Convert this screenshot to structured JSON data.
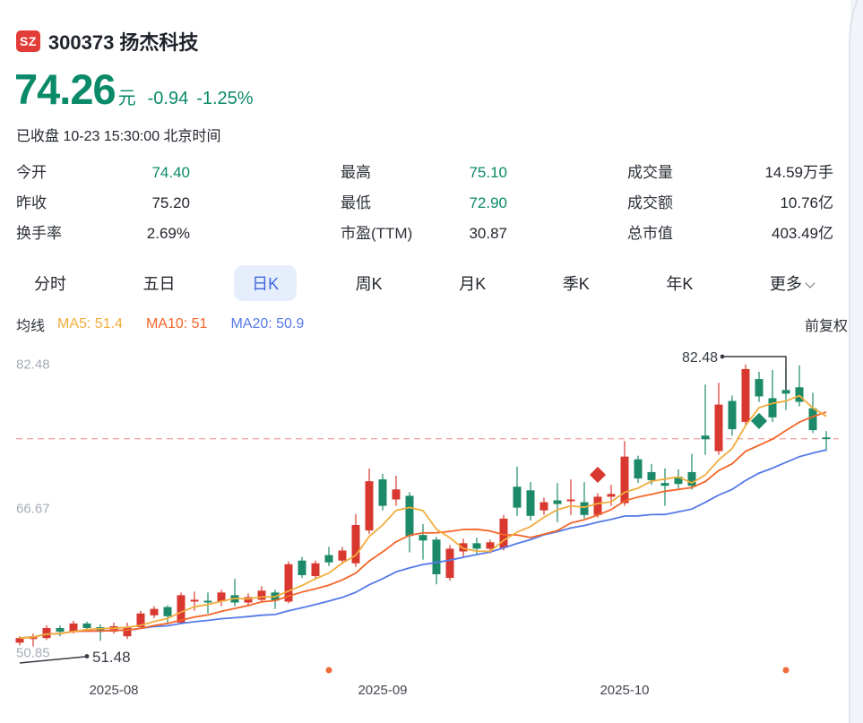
{
  "header": {
    "exchange_badge": "SZ",
    "title": "300373 扬杰科技",
    "price": "74.26",
    "currency": "元",
    "change": "-0.94",
    "change_pct": "-1.25%",
    "status_line": "已收盘 10-23 15:30:00 北京时间"
  },
  "stats": {
    "columns": [
      [
        {
          "label": "今开",
          "value": "74.40",
          "green": true
        },
        {
          "label": "昨收",
          "value": "75.20",
          "green": false
        },
        {
          "label": "换手率",
          "value": "2.69%",
          "green": false
        }
      ],
      [
        {
          "label": "最高",
          "value": "75.10",
          "green": true
        },
        {
          "label": "最低",
          "value": "72.90",
          "green": true
        },
        {
          "label": "市盈(TTM)",
          "value": "30.87",
          "green": false
        }
      ],
      [
        {
          "label": "成交量",
          "value": "14.59万手",
          "green": false
        },
        {
          "label": "成交额",
          "value": "10.76亿",
          "green": false
        },
        {
          "label": "总市值",
          "value": "403.49亿",
          "green": false
        }
      ]
    ]
  },
  "tabs": {
    "items": [
      {
        "key": "minute",
        "label": "分时",
        "active": false,
        "caret": false
      },
      {
        "key": "five-day",
        "label": "五日",
        "active": false,
        "caret": false
      },
      {
        "key": "daily-k",
        "label": "日K",
        "active": true,
        "caret": false
      },
      {
        "key": "weekly-k",
        "label": "周K",
        "active": false,
        "caret": false
      },
      {
        "key": "monthly-k",
        "label": "月K",
        "active": false,
        "caret": false
      },
      {
        "key": "quarterly-k",
        "label": "季K",
        "active": false,
        "caret": false
      },
      {
        "key": "yearly-k",
        "label": "年K",
        "active": false,
        "caret": false
      },
      {
        "key": "more",
        "label": "更多",
        "active": false,
        "caret": true
      }
    ]
  },
  "ma_legend": {
    "title": "均线",
    "items": [
      {
        "key": "ma5",
        "label": "MA5: 51.4"
      },
      {
        "key": "ma10",
        "label": "MA10: 51"
      },
      {
        "key": "ma20",
        "label": "MA20: 50.9"
      }
    ],
    "adjust_mode": "前复权"
  },
  "chart_data": {
    "type": "candlestick",
    "title": "300373 扬杰科技 日K (前复权)",
    "y_ticks": [
      {
        "text": "82.48",
        "price": 82.48
      },
      {
        "text": "66.67",
        "price": 66.67
      },
      {
        "text": "50.85",
        "price": 50.85
      }
    ],
    "ylim": [
      50.85,
      82.48
    ],
    "price_line": 74.26,
    "x_axis_labels": [
      {
        "text": "2025-08",
        "index": 7
      },
      {
        "text": "2025-09",
        "index": 27
      },
      {
        "text": "2025-10",
        "index": 45
      }
    ],
    "annotations": {
      "max": {
        "text": "82.48",
        "index": 57,
        "price": 82.48
      },
      "min": {
        "text": "51.48",
        "index": 0,
        "price": 51.48
      }
    },
    "markers": [
      {
        "index": 43,
        "price": 70.3,
        "color": "up"
      },
      {
        "index": 55,
        "price": 76.2,
        "color": "down"
      }
    ],
    "event_dots": [
      {
        "index": 23
      },
      {
        "index": 57
      }
    ],
    "candles_ohlc_note": "o,c,l,h per trading day, 前复权 prices in CNY; red=up green=down",
    "candles": [
      [
        51.9,
        52.4,
        51.6,
        52.6
      ],
      [
        52.3,
        52.6,
        51.48,
        52.9
      ],
      [
        52.4,
        53.5,
        52.2,
        53.8
      ],
      [
        53.5,
        53.1,
        52.6,
        53.8
      ],
      [
        53.1,
        54.0,
        52.9,
        54.3
      ],
      [
        54.0,
        53.5,
        53.1,
        54.2
      ],
      [
        53.6,
        53.1,
        52.1,
        53.9
      ],
      [
        53.1,
        53.7,
        52.9,
        54.1
      ],
      [
        52.6,
        53.6,
        52.3,
        54.1
      ],
      [
        53.6,
        55.1,
        53.4,
        55.4
      ],
      [
        54.9,
        55.6,
        54.6,
        55.9
      ],
      [
        55.8,
        54.8,
        53.9,
        56.0
      ],
      [
        54.1,
        57.1,
        53.9,
        57.4
      ],
      [
        56.4,
        56.6,
        55.4,
        57.5
      ],
      [
        56.5,
        56.3,
        55.1,
        57.4
      ],
      [
        56.4,
        57.4,
        55.9,
        57.7
      ],
      [
        57.1,
        56.3,
        55.9,
        58.9
      ],
      [
        56.3,
        56.9,
        55.9,
        57.3
      ],
      [
        56.6,
        57.6,
        56.3,
        58.1
      ],
      [
        57.4,
        56.5,
        55.6,
        57.7
      ],
      [
        56.4,
        60.5,
        56.2,
        60.8
      ],
      [
        60.9,
        59.3,
        59.0,
        61.3
      ],
      [
        59.2,
        60.6,
        58.8,
        60.9
      ],
      [
        61.5,
        60.7,
        60.3,
        62.4
      ],
      [
        60.9,
        62.0,
        60.5,
        62.4
      ],
      [
        60.6,
        64.8,
        60.2,
        66.0
      ],
      [
        64.2,
        69.6,
        63.8,
        71.0
      ],
      [
        69.8,
        66.9,
        66.4,
        70.4
      ],
      [
        67.6,
        68.7,
        66.9,
        70.2
      ],
      [
        68.0,
        63.6,
        61.8,
        68.4
      ],
      [
        63.7,
        63.1,
        61.0,
        64.9
      ],
      [
        63.2,
        59.4,
        58.3,
        63.5
      ],
      [
        59.0,
        62.2,
        58.7,
        62.6
      ],
      [
        61.9,
        62.8,
        61.2,
        63.3
      ],
      [
        62.8,
        62.2,
        61.5,
        63.4
      ],
      [
        62.2,
        62.9,
        61.7,
        63.2
      ],
      [
        62.3,
        65.5,
        62.0,
        65.9
      ],
      [
        69.0,
        66.7,
        65.8,
        71.2
      ],
      [
        68.6,
        65.8,
        65.3,
        69.5
      ],
      [
        66.4,
        67.3,
        65.9,
        67.8
      ],
      [
        67.5,
        67.1,
        65.1,
        69.4
      ],
      [
        67.4,
        67.6,
        65.9,
        69.8
      ],
      [
        67.3,
        65.9,
        65.5,
        69.5
      ],
      [
        65.9,
        67.9,
        65.6,
        68.3
      ],
      [
        67.9,
        68.2,
        66.9,
        69.2
      ],
      [
        67.2,
        72.3,
        66.9,
        74.0
      ],
      [
        72.0,
        69.9,
        69.4,
        72.4
      ],
      [
        70.6,
        69.7,
        69.2,
        71.5
      ],
      [
        69.4,
        69.1,
        66.9,
        71.0
      ],
      [
        70.1,
        69.3,
        68.8,
        70.9
      ],
      [
        70.6,
        69.1,
        68.7,
        72.6
      ],
      [
        74.6,
        74.2,
        72.5,
        80.2
      ],
      [
        72.9,
        78.0,
        72.5,
        80.4
      ],
      [
        78.4,
        75.3,
        74.6,
        79.0
      ],
      [
        76.1,
        81.9,
        75.7,
        82.4
      ],
      [
        80.8,
        78.9,
        78.3,
        81.6
      ],
      [
        78.7,
        76.6,
        76.1,
        81.8
      ],
      [
        79.6,
        79.2,
        77.4,
        82.48
      ],
      [
        79.9,
        78.3,
        77.8,
        82.3
      ],
      [
        77.6,
        75.2,
        74.9,
        79.3
      ],
      [
        74.4,
        74.26,
        72.9,
        75.1
      ]
    ],
    "colors": {
      "up": "#d8382f",
      "down": "#1c8a69",
      "ma5": "#f1ad3d",
      "ma10": "#f4662a",
      "ma20": "#567ae8",
      "price_line": "#f2a6a6",
      "event_dot": "#ee6b3c",
      "axis_text": "#a7acb8",
      "x_label": "#43474f",
      "annotation": "#373c44"
    },
    "legend": [
      "MA5: 51.4",
      "MA10: 51",
      "MA20: 50.9"
    ]
  },
  "frame": {
    "border_color": "#d9dee9",
    "strip_color": "#f2f4f9"
  }
}
